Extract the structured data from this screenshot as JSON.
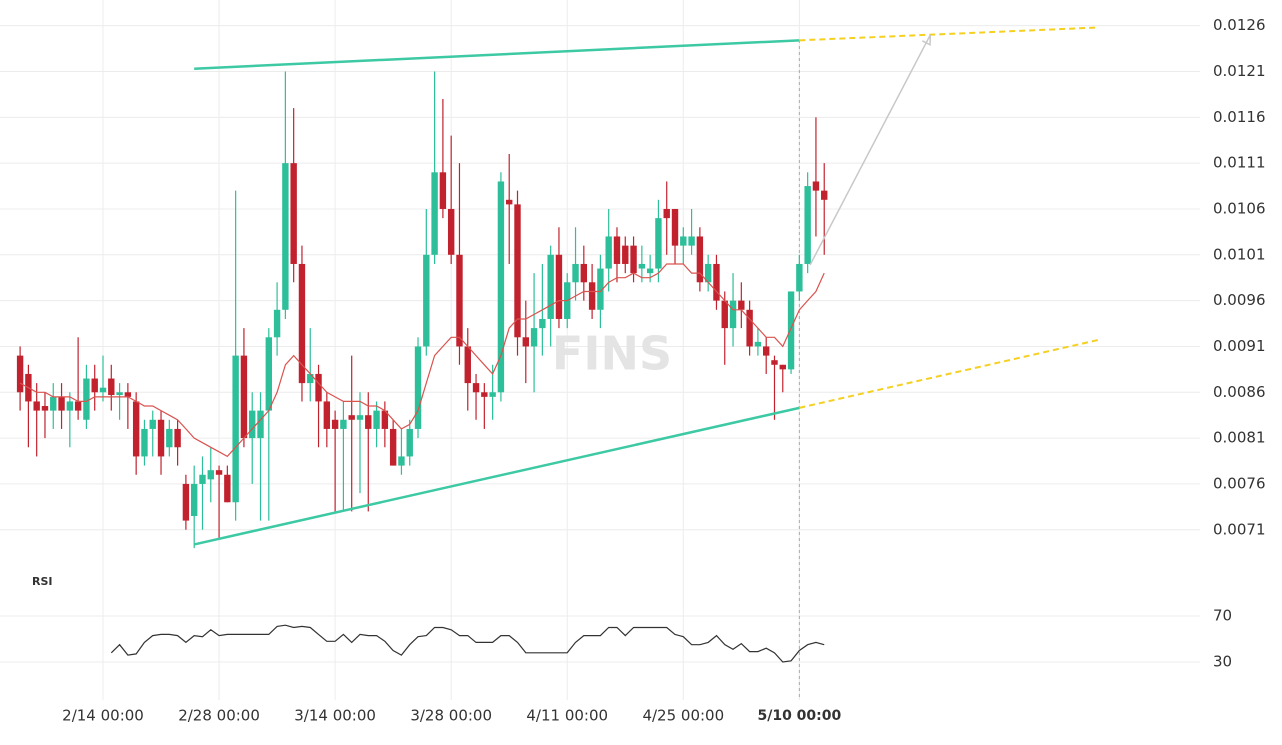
{
  "chart_data": [
    {
      "type": "candlestick",
      "watermark": "FINS",
      "categories": [
        null,
        null,
        null,
        null,
        null,
        null,
        null,
        null,
        null,
        null,
        "2/14 00:00",
        null,
        null,
        null,
        null,
        null,
        null,
        null,
        null,
        null,
        null,
        null,
        null,
        null,
        "2/28 00:00",
        null,
        null,
        null,
        null,
        null,
        null,
        null,
        null,
        null,
        null,
        null,
        null,
        null,
        "3/14 00:00",
        null,
        null,
        null,
        null,
        null,
        null,
        null,
        null,
        null,
        null,
        null,
        null,
        null,
        "3/28 00:00",
        null,
        null,
        null,
        null,
        null,
        null,
        null,
        null,
        null,
        null,
        null,
        null,
        null,
        "4/11 00:00",
        null,
        null,
        null,
        null,
        null,
        null,
        null,
        null,
        null,
        null,
        null,
        null,
        null,
        "4/25 00:00",
        null,
        null,
        null,
        null,
        null,
        null,
        null,
        null,
        null,
        null,
        null,
        null,
        null,
        "5/10 00:00",
        null,
        null,
        null
      ],
      "open": [
        0.009,
        0.0088,
        0.0085,
        0.00845,
        0.0084,
        0.00855,
        0.0084,
        0.0085,
        0.0083,
        0.00875,
        0.0086,
        0.00875,
        0.00857,
        0.0086,
        0.0085,
        0.0079,
        0.0082,
        0.0083,
        0.008,
        0.0082,
        0.0076,
        0.00725,
        0.0076,
        0.00765,
        0.00775,
        0.0077,
        0.0074,
        0.009,
        0.0081,
        0.0081,
        0.0084,
        0.0092,
        0.0095,
        0.0111,
        0.01,
        0.0087,
        0.0088,
        0.0085,
        0.0083,
        0.0082,
        0.00835,
        0.0083,
        0.00835,
        0.0082,
        0.0084,
        0.0082,
        0.0078,
        0.0079,
        0.0082,
        0.0091,
        0.0101,
        0.011,
        0.0106,
        0.0101,
        0.0091,
        0.0087,
        0.0086,
        0.00855,
        0.0086,
        0.0107,
        0.01065,
        0.0092,
        0.0091,
        0.0093,
        0.0094,
        0.0101,
        0.0094,
        0.0098,
        0.01,
        0.0098,
        0.0095,
        0.00995,
        0.0103,
        0.0102,
        0.0102,
        0.00995,
        0.0099,
        0.00995,
        0.0106,
        0.0106,
        0.0102,
        0.0102,
        0.0103,
        0.0098,
        0.01,
        0.0096,
        0.0093,
        0.0096,
        0.0095,
        0.0091,
        0.0091,
        0.00895,
        0.0089,
        0.00885,
        0.0097,
        0.01,
        0.0109,
        0.0108
      ],
      "high": [
        0.0091,
        0.0089,
        0.0087,
        0.0086,
        0.0087,
        0.0087,
        0.0086,
        0.0092,
        0.0089,
        0.0089,
        0.009,
        0.0089,
        0.0087,
        0.0087,
        0.0086,
        0.0083,
        0.0084,
        0.0084,
        0.0083,
        0.0083,
        0.0077,
        0.0078,
        0.0079,
        0.008,
        0.0078,
        0.0078,
        0.0108,
        0.0093,
        0.0086,
        0.0086,
        0.0093,
        0.0098,
        0.0121,
        0.0117,
        0.0102,
        0.0093,
        0.0089,
        0.0086,
        0.0084,
        0.0085,
        0.009,
        0.0086,
        0.0086,
        0.0085,
        0.0085,
        0.0083,
        0.0082,
        0.0083,
        0.0092,
        0.0106,
        0.0121,
        0.0118,
        0.0114,
        0.0111,
        0.0093,
        0.0088,
        0.0087,
        0.0089,
        0.011,
        0.0112,
        0.0108,
        0.0096,
        0.0099,
        0.01,
        0.0102,
        0.0104,
        0.0099,
        0.0104,
        0.0102,
        0.01,
        0.0101,
        0.0106,
        0.0104,
        0.0103,
        0.0103,
        0.0102,
        0.0101,
        0.0107,
        0.0109,
        0.0106,
        0.0104,
        0.0106,
        0.0104,
        0.0101,
        0.0101,
        0.0097,
        0.0099,
        0.0098,
        0.0096,
        0.0093,
        0.0092,
        0.009,
        0.0089,
        0.0097,
        0.0101,
        0.011,
        0.0116,
        0.0111
      ],
      "low": [
        0.0084,
        0.008,
        0.0079,
        0.0081,
        0.0082,
        0.0082,
        0.008,
        0.0083,
        0.0082,
        0.0084,
        0.0085,
        0.0084,
        0.0083,
        0.0082,
        0.0077,
        0.0078,
        0.0079,
        0.0077,
        0.0079,
        0.0078,
        0.0071,
        0.0069,
        0.0071,
        0.0074,
        0.007,
        0.0074,
        0.0072,
        0.008,
        0.0076,
        0.0072,
        0.0072,
        0.009,
        0.0094,
        0.0098,
        0.0085,
        0.0085,
        0.008,
        0.008,
        0.0073,
        0.0073,
        0.0073,
        0.0075,
        0.0073,
        0.008,
        0.008,
        0.0078,
        0.0077,
        0.0078,
        0.0081,
        0.009,
        0.01,
        0.0105,
        0.01,
        0.0089,
        0.0084,
        0.0083,
        0.0082,
        0.0083,
        0.0085,
        0.01,
        0.009,
        0.0087,
        0.0086,
        0.009,
        0.0091,
        0.0093,
        0.0093,
        0.0096,
        0.0096,
        0.0094,
        0.0093,
        0.0097,
        0.0098,
        0.0099,
        0.0098,
        0.0098,
        0.0098,
        0.0098,
        0.0101,
        0.01,
        0.01,
        0.0101,
        0.0097,
        0.0097,
        0.0095,
        0.0089,
        0.0091,
        0.0093,
        0.009,
        0.009,
        0.0088,
        0.0083,
        0.0086,
        0.0088,
        0.0096,
        0.0099,
        0.0103,
        0.0101
      ],
      "close": [
        0.0086,
        0.0085,
        0.0084,
        0.0084,
        0.00855,
        0.0084,
        0.0085,
        0.0084,
        0.00875,
        0.0086,
        0.00865,
        0.00857,
        0.0086,
        0.00855,
        0.0079,
        0.0082,
        0.0083,
        0.0079,
        0.0082,
        0.008,
        0.0072,
        0.0076,
        0.0077,
        0.00775,
        0.0077,
        0.0074,
        0.009,
        0.0081,
        0.0084,
        0.0084,
        0.0092,
        0.0095,
        0.0111,
        0.01,
        0.0087,
        0.0088,
        0.0085,
        0.0082,
        0.0082,
        0.0083,
        0.0083,
        0.00835,
        0.0082,
        0.0084,
        0.0082,
        0.0078,
        0.0079,
        0.0082,
        0.0091,
        0.0101,
        0.011,
        0.0106,
        0.0101,
        0.0091,
        0.0087,
        0.0086,
        0.00855,
        0.0086,
        0.0109,
        0.01065,
        0.0092,
        0.0091,
        0.0093,
        0.0094,
        0.0101,
        0.0094,
        0.0098,
        0.01,
        0.0098,
        0.0095,
        0.00995,
        0.0103,
        0.01,
        0.01,
        0.0099,
        0.01,
        0.00995,
        0.0105,
        0.0105,
        0.0102,
        0.0103,
        0.0103,
        0.0098,
        0.01,
        0.0096,
        0.0093,
        0.0096,
        0.0095,
        0.0091,
        0.00915,
        0.009,
        0.0089,
        0.00885,
        0.0097,
        0.01,
        0.01085,
        0.0108,
        0.0107
      ],
      "up_color": "#2cbf9a",
      "down_color": "#c2222e",
      "ma": {
        "color": "#d9534f",
        "values": [
          0.0087,
          0.00865,
          0.0086,
          0.0086,
          0.00855,
          0.00855,
          0.00855,
          0.0085,
          0.0085,
          0.00855,
          0.00855,
          0.00855,
          0.00855,
          0.00855,
          0.0085,
          0.00845,
          0.00845,
          0.0084,
          0.00835,
          0.0083,
          0.0082,
          0.0081,
          0.00805,
          0.008,
          0.00795,
          0.0079,
          0.008,
          0.0081,
          0.0082,
          0.0083,
          0.0084,
          0.0086,
          0.0089,
          0.009,
          0.0089,
          0.0088,
          0.0087,
          0.0086,
          0.00855,
          0.0085,
          0.0085,
          0.0085,
          0.00845,
          0.00845,
          0.0084,
          0.0083,
          0.0082,
          0.00825,
          0.0084,
          0.0087,
          0.009,
          0.0091,
          0.0092,
          0.0092,
          0.0091,
          0.009,
          0.0089,
          0.0088,
          0.009,
          0.0093,
          0.0094,
          0.0094,
          0.00945,
          0.0095,
          0.00955,
          0.0096,
          0.0096,
          0.00965,
          0.0097,
          0.0097,
          0.0097,
          0.0098,
          0.00985,
          0.00985,
          0.0099,
          0.00985,
          0.00985,
          0.0099,
          0.01,
          0.01,
          0.01,
          0.0099,
          0.0099,
          0.0098,
          0.0097,
          0.0096,
          0.0095,
          0.0095,
          0.0094,
          0.0093,
          0.0092,
          0.0092,
          0.0091,
          0.0093,
          0.0095,
          0.0096,
          0.0097,
          0.0099
        ]
      },
      "trendlines": [
        {
          "color": "#3cc9a4",
          "points": [
            [
              21,
              0.01213
            ],
            [
              94,
              0.01244
            ]
          ]
        },
        {
          "color": "#f5d020",
          "dash": true,
          "points": [
            [
              94,
              0.01244
            ],
            [
              130,
              0.01258
            ]
          ]
        },
        {
          "color": "#3cc9a4",
          "points": [
            [
              21,
              0.00694
            ],
            [
              94,
              0.00843
            ]
          ]
        },
        {
          "color": "#f5d020",
          "dash": true,
          "points": [
            [
              94,
              0.00843
            ],
            [
              130,
              0.00917
            ]
          ]
        }
      ],
      "arrows": [
        {
          "color": "#c8c8c8",
          "points": [
            [
              95.3,
              0.00999
            ],
            [
              109.8,
              0.0125
            ]
          ]
        }
      ],
      "ylim": [
        0.00677,
        0.01288
      ],
      "yticks": [
        0.0126,
        0.0121,
        0.0116,
        0.0111,
        0.0106,
        0.0101,
        0.0096,
        0.0091,
        0.0086,
        0.0081,
        0.0076,
        0.0071
      ],
      "grid": true
    },
    {
      "type": "line",
      "title": "RSI",
      "color": "#333333",
      "values": [
        null,
        null,
        null,
        null,
        null,
        null,
        null,
        null,
        null,
        null,
        null,
        38,
        45,
        36,
        37,
        47,
        53,
        54,
        54,
        53,
        47,
        53,
        52,
        58,
        53,
        54,
        54,
        54,
        54,
        54,
        54,
        61,
        62,
        60,
        61,
        60,
        54,
        48,
        48,
        54,
        47,
        54,
        53,
        53,
        48,
        40,
        36,
        45,
        52,
        53,
        60,
        60,
        58,
        53,
        53,
        47,
        47,
        47,
        53,
        53,
        47,
        38,
        38,
        38,
        38,
        38,
        38,
        47,
        53,
        53,
        53,
        60,
        60,
        53,
        60,
        60,
        60,
        60,
        60,
        54,
        52,
        45,
        45,
        47,
        53,
        45,
        41,
        46,
        39,
        39,
        42,
        38,
        30,
        31,
        40,
        45,
        47,
        45
      ],
      "ylim": [
        5.6,
        85.7
      ],
      "yticks": [
        70,
        30
      ],
      "grid": true
    }
  ]
}
